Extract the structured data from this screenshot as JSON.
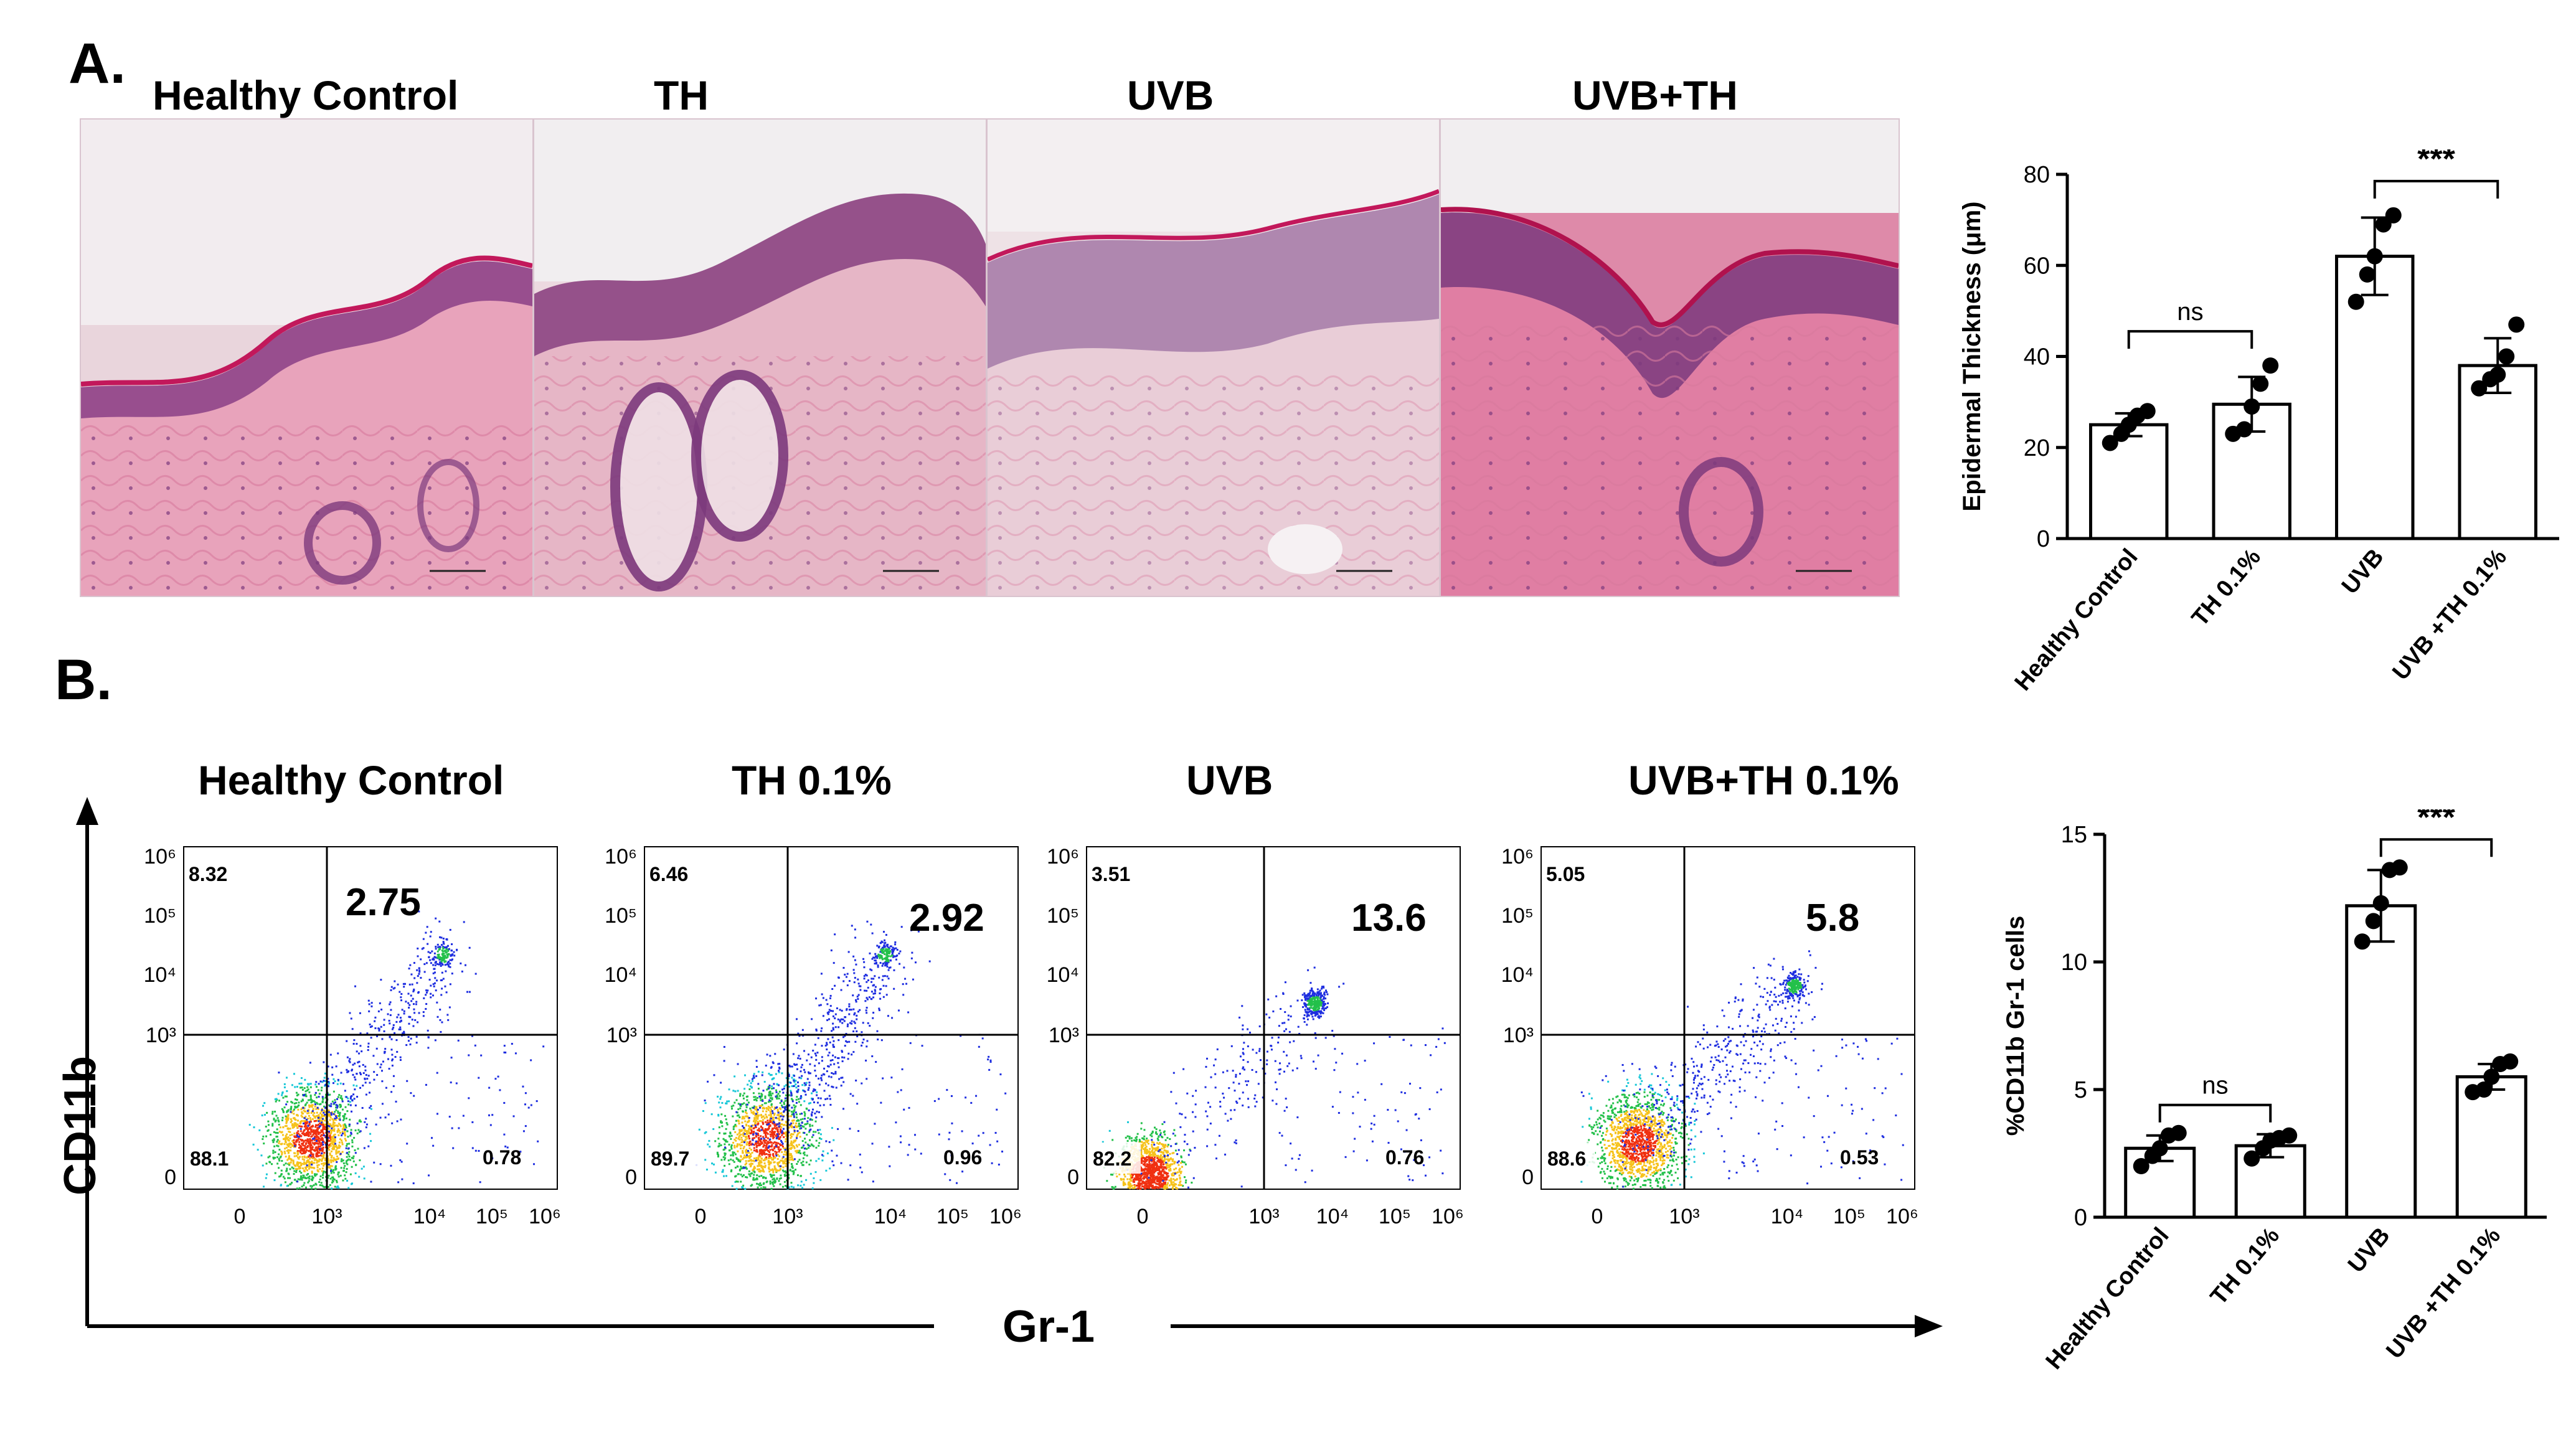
{
  "panel_a": {
    "letter": "A.",
    "he_titles": [
      "Healthy Control",
      "TH",
      "UVB",
      "UVB+TH"
    ]
  },
  "panel_b": {
    "letter": "B.",
    "fc_titles": [
      "Healthy Control",
      "TH 0.1%",
      "UVB",
      "UVB+TH 0.1%"
    ],
    "y_axis_label": "CD11b",
    "x_axis_label": "Gr-1",
    "y_ticks": [
      "0",
      "10³",
      "10⁴",
      "10⁵",
      "10⁶"
    ],
    "x_ticks": [
      "0",
      "10³",
      "10⁴",
      "10⁵",
      "10⁶"
    ],
    "plots": [
      {
        "q_ul": "8.32",
        "q_ur": "2.75",
        "q_ll": "88.1",
        "q_lr": "0.78"
      },
      {
        "q_ul": "6.46",
        "q_ur": "2.92",
        "q_ll": "89.7",
        "q_lr": "0.96"
      },
      {
        "q_ul": "3.51",
        "q_ur": "13.6",
        "q_ll": "82.2",
        "q_lr": "0.76"
      },
      {
        "q_ul": "5.05",
        "q_ur": "5.8",
        "q_ll": "88.6",
        "q_lr": "0.53"
      }
    ]
  },
  "colors": {
    "bar_fill": "#ffffff",
    "dot": "#000000",
    "he_pink": "#e6a9bf",
    "he_purple": "#8a3f86",
    "density_low": "#1e2ee0",
    "density_high": "#f03010"
  },
  "chart_data": [
    {
      "type": "bar",
      "ylabel": "Epidermal Thickness (μm)",
      "categories": [
        "Healthy Control",
        "TH 0.1%",
        "UVB",
        "UVB +TH 0.1%"
      ],
      "values": [
        25,
        29.5,
        62,
        38
      ],
      "errors": [
        2.5,
        6,
        8.5,
        6
      ],
      "points": [
        [
          21,
          23,
          25,
          27,
          28
        ],
        [
          23,
          24,
          29,
          34,
          38
        ],
        [
          52,
          58,
          62,
          69,
          71
        ],
        [
          33,
          35,
          36,
          40,
          47
        ]
      ],
      "ylim": [
        0,
        80
      ],
      "yticks": [
        0,
        20,
        40,
        60,
        80
      ],
      "significance": [
        {
          "from": 0,
          "to": 1,
          "label": "ns"
        },
        {
          "from": 2,
          "to": 3,
          "label": "***"
        }
      ]
    },
    {
      "type": "bar",
      "ylabel": "%CD11b Gr-1 cells",
      "categories": [
        "Healthy Control",
        "TH 0.1%",
        "UVB",
        "UVB +TH 0.1%"
      ],
      "values": [
        2.7,
        2.8,
        12.2,
        5.5
      ],
      "errors": [
        0.5,
        0.45,
        1.4,
        0.5
      ],
      "points": [
        [
          2.0,
          2.4,
          2.7,
          3.2,
          3.3
        ],
        [
          2.3,
          2.7,
          3.0,
          3.1,
          3.2
        ],
        [
          10.8,
          11.6,
          12.3,
          13.6,
          13.7
        ],
        [
          4.9,
          5.0,
          5.5,
          6.0,
          6.1
        ]
      ],
      "ylim": [
        0,
        15
      ],
      "yticks": [
        0,
        5,
        10,
        15
      ],
      "significance": [
        {
          "from": 0,
          "to": 1,
          "label": "ns"
        },
        {
          "from": 2,
          "to": 3,
          "label": "***"
        }
      ]
    }
  ]
}
